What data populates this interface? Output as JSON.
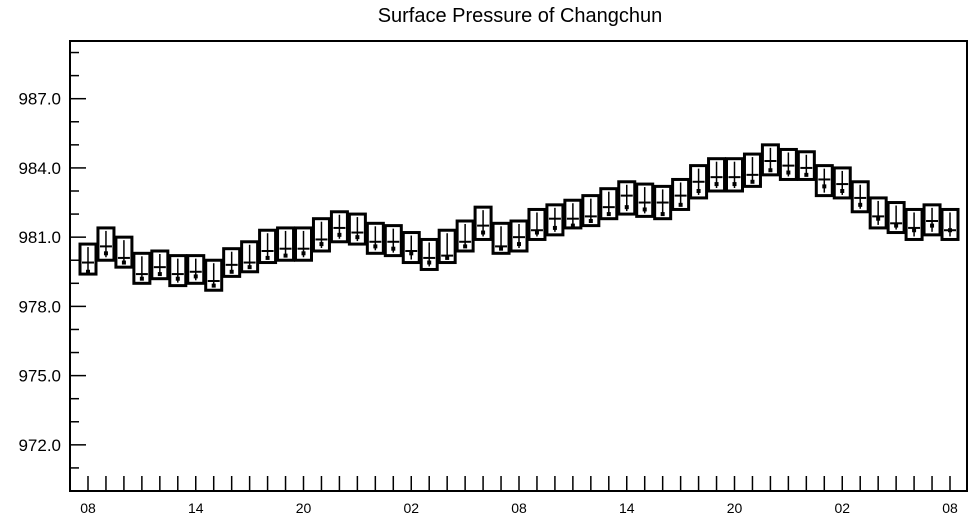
{
  "chart_data": {
    "type": "box",
    "title": "Surface Pressure of Changchun",
    "xlabel": "",
    "ylabel": "",
    "ylim": [
      970.0,
      989.5
    ],
    "yticks": [
      972.0,
      975.0,
      978.0,
      981.0,
      984.0,
      987.0
    ],
    "ytick_labels": [
      "972.0",
      "975.0",
      "978.0",
      "981.0",
      "984.0",
      "987.0"
    ],
    "x_count": 49,
    "xtick_labels": [
      {
        "index": 0,
        "label": "08"
      },
      {
        "index": 6,
        "label": "14"
      },
      {
        "index": 12,
        "label": "20"
      },
      {
        "index": 18,
        "label": "02"
      },
      {
        "index": 24,
        "label": "08"
      },
      {
        "index": 30,
        "label": "14"
      },
      {
        "index": 36,
        "label": "20"
      },
      {
        "index": 42,
        "label": "02"
      },
      {
        "index": 48,
        "label": "08"
      }
    ],
    "grid": false,
    "series": [
      {
        "box_low": [
          979.4,
          980.0,
          979.7,
          979.0,
          979.2,
          978.9,
          979.0,
          978.7,
          979.3,
          979.5,
          979.9,
          980.0,
          980.0,
          980.4,
          980.8,
          980.7,
          980.3,
          980.2,
          979.9,
          979.6,
          979.9,
          980.4,
          980.9,
          980.3,
          980.4,
          980.9,
          981.1,
          981.4,
          981.5,
          981.8,
          982.0,
          981.9,
          981.8,
          982.2,
          982.7,
          983.0,
          983.0,
          983.2,
          983.7,
          983.5,
          983.5,
          982.8,
          982.7,
          982.1,
          981.4,
          981.2,
          980.9,
          981.1,
          980.9
        ],
        "box_high": [
          980.7,
          981.4,
          981.0,
          980.3,
          980.4,
          980.2,
          980.2,
          980.0,
          980.5,
          980.8,
          981.3,
          981.4,
          981.4,
          981.8,
          982.1,
          982.0,
          981.6,
          981.5,
          981.2,
          980.9,
          981.3,
          981.7,
          982.3,
          981.6,
          981.7,
          982.2,
          982.4,
          982.6,
          982.8,
          983.1,
          983.4,
          983.3,
          983.2,
          983.5,
          984.1,
          984.4,
          984.4,
          984.6,
          985.0,
          984.8,
          984.7,
          984.1,
          984.0,
          983.4,
          982.7,
          982.5,
          982.2,
          982.4,
          982.2
        ],
        "median": [
          979.9,
          980.6,
          980.1,
          979.4,
          979.7,
          979.4,
          979.5,
          979.1,
          979.8,
          979.9,
          980.4,
          980.5,
          980.5,
          980.9,
          981.4,
          981.2,
          980.8,
          980.8,
          980.4,
          980.1,
          980.2,
          980.8,
          981.5,
          980.6,
          981.0,
          981.3,
          981.8,
          981.8,
          981.9,
          982.3,
          982.8,
          982.5,
          982.5,
          982.8,
          983.4,
          983.6,
          983.6,
          983.7,
          984.3,
          984.1,
          984.0,
          983.5,
          983.3,
          982.7,
          981.9,
          981.6,
          981.4,
          981.7,
          981.3
        ],
        "mean": [
          979.5,
          980.3,
          979.9,
          979.2,
          979.4,
          979.2,
          979.3,
          978.9,
          979.5,
          979.7,
          980.1,
          980.2,
          980.3,
          980.7,
          981.1,
          981.0,
          980.6,
          980.5,
          980.3,
          979.9,
          980.1,
          980.6,
          981.2,
          980.5,
          980.7,
          981.2,
          981.4,
          981.5,
          981.7,
          982.0,
          982.3,
          982.2,
          982.0,
          982.4,
          983.0,
          983.3,
          983.3,
          983.4,
          983.9,
          983.8,
          983.7,
          983.2,
          983.0,
          982.4,
          981.8,
          981.5,
          981.3,
          981.5,
          981.3
        ]
      }
    ]
  }
}
